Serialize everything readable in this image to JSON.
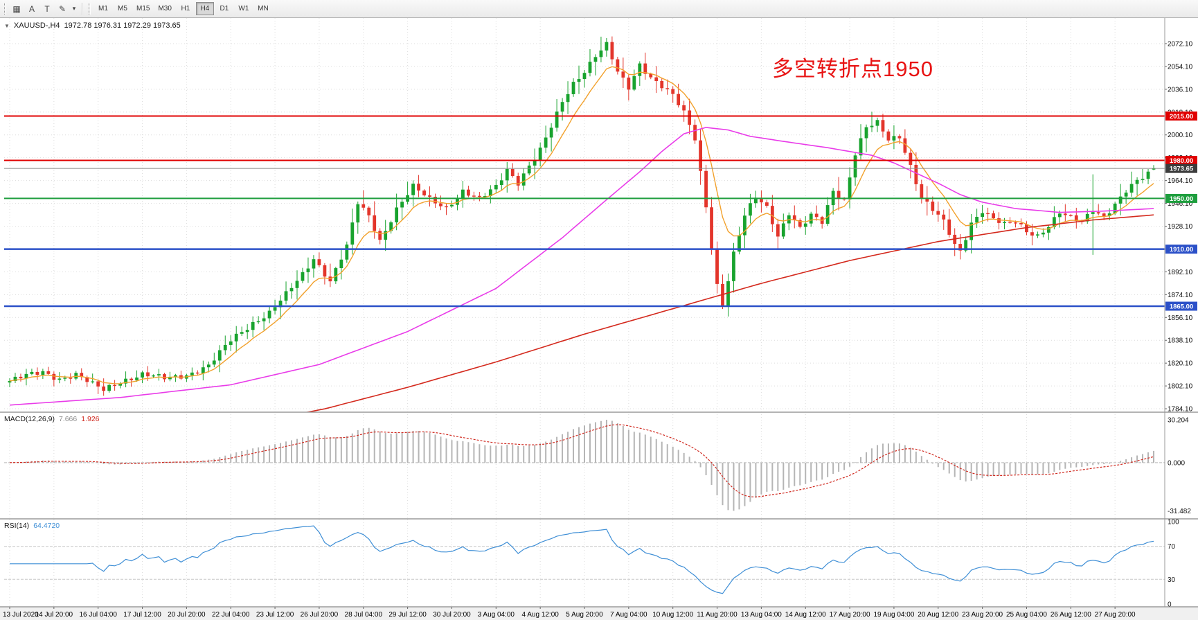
{
  "toolbar": {
    "icons": [
      "▦",
      "A",
      "T",
      "✎",
      "▾"
    ],
    "timeframes": [
      "M1",
      "M5",
      "M15",
      "M30",
      "H1",
      "H4",
      "D1",
      "W1",
      "MN"
    ],
    "active_timeframe": "H4"
  },
  "chart_header": {
    "collapse_icon": "▼",
    "symbol_tf": "XAUUSD-,H4",
    "ohlc": "1972.78 1976.31 1972.29 1973.65"
  },
  "chart_data": {
    "type": "candlestick",
    "symbol": "XAUUSD-",
    "timeframe": "H4",
    "bars": 208,
    "last_bar": {
      "o": 1972.78,
      "h": 1976.31,
      "l": 1972.29,
      "c": 1973.65
    },
    "current": {
      "price": 1973.65,
      "label": "1973.65",
      "color": "#3c3c3c"
    },
    "levels": [
      {
        "price": 2015.0,
        "label": "2015.00",
        "color": "#e00000",
        "width": 2
      },
      {
        "price": 1980.0,
        "label": "1980.00",
        "color": "#e00000",
        "width": 2
      },
      {
        "price": 1950.0,
        "label": "1950.00",
        "color": "#1e9e3e",
        "width": 2
      },
      {
        "price": 1910.0,
        "label": "1910.00",
        "color": "#2b50c8",
        "width": 2.5
      },
      {
        "price": 1865.0,
        "label": "1865.00",
        "color": "#2b50c8",
        "width": 2.5
      }
    ],
    "colors": {
      "up": "#18a32e",
      "down": "#e3352b",
      "ma_fast": "#f2a12c",
      "ma_medium": "#e93ce9",
      "ma_slow": "#d42a1e"
    },
    "price_path_anchors": [
      [
        0,
        1806
      ],
      [
        3,
        1810
      ],
      [
        6,
        1813
      ],
      [
        9,
        1808
      ],
      [
        12,
        1811
      ],
      [
        15,
        1803
      ],
      [
        17,
        1799
      ],
      [
        20,
        1806
      ],
      [
        24,
        1811
      ],
      [
        28,
        1808
      ],
      [
        32,
        1811
      ],
      [
        36,
        1818
      ],
      [
        40,
        1838
      ],
      [
        44,
        1852
      ],
      [
        47,
        1860
      ],
      [
        50,
        1874
      ],
      [
        53,
        1890
      ],
      [
        55,
        1903
      ],
      [
        58,
        1885
      ],
      [
        61,
        1912
      ],
      [
        63,
        1946
      ],
      [
        65,
        1936
      ],
      [
        67,
        1917
      ],
      [
        70,
        1942
      ],
      [
        73,
        1959
      ],
      [
        76,
        1949
      ],
      [
        79,
        1943
      ],
      [
        82,
        1956
      ],
      [
        85,
        1949
      ],
      [
        88,
        1959
      ],
      [
        90,
        1973
      ],
      [
        92,
        1963
      ],
      [
        94,
        1976
      ],
      [
        96,
        1988
      ],
      [
        98,
        2006
      ],
      [
        100,
        2026
      ],
      [
        102,
        2041
      ],
      [
        104,
        2051
      ],
      [
        106,
        2063
      ],
      [
        108,
        2071
      ],
      [
        110,
        2049
      ],
      [
        112,
        2037
      ],
      [
        114,
        2056
      ],
      [
        116,
        2046
      ],
      [
        118,
        2039
      ],
      [
        120,
        2031
      ],
      [
        122,
        2017
      ],
      [
        124,
        1997
      ],
      [
        126,
        1944
      ],
      [
        128,
        1882
      ],
      [
        129,
        1866
      ],
      [
        131,
        1906
      ],
      [
        133,
        1936
      ],
      [
        135,
        1951
      ],
      [
        137,
        1943
      ],
      [
        139,
        1921
      ],
      [
        141,
        1939
      ],
      [
        143,
        1926
      ],
      [
        145,
        1936
      ],
      [
        147,
        1931
      ],
      [
        149,
        1956
      ],
      [
        151,
        1949
      ],
      [
        153,
        1986
      ],
      [
        155,
        2006
      ],
      [
        157,
        2009
      ],
      [
        159,
        1996
      ],
      [
        161,
        1999
      ],
      [
        163,
        1976
      ],
      [
        165,
        1951
      ],
      [
        167,
        1941
      ],
      [
        169,
        1931
      ],
      [
        171,
        1913
      ],
      [
        172,
        1908
      ],
      [
        174,
        1931
      ],
      [
        176,
        1941
      ],
      [
        178,
        1934
      ],
      [
        180,
        1929
      ],
      [
        182,
        1931
      ],
      [
        184,
        1924
      ],
      [
        186,
        1921
      ],
      [
        188,
        1929
      ],
      [
        190,
        1939
      ],
      [
        192,
        1934
      ],
      [
        194,
        1931
      ],
      [
        196,
        1941
      ],
      [
        198,
        1936
      ],
      [
        200,
        1946
      ],
      [
        202,
        1956
      ],
      [
        204,
        1963
      ],
      [
        206,
        1969
      ],
      [
        207,
        1972.8
      ]
    ],
    "wick_overrides": [
      {
        "i": 108,
        "high": 2076.5
      },
      {
        "i": 128,
        "low": 1875.0
      },
      {
        "i": 129,
        "low": 1862.8
      },
      {
        "i": 196,
        "low": 1905.5,
        "high": 1969.0
      }
    ],
    "ma_medium_anchors": [
      [
        0,
        1787
      ],
      [
        20,
        1793
      ],
      [
        40,
        1803
      ],
      [
        56,
        1819
      ],
      [
        72,
        1845
      ],
      [
        88,
        1879
      ],
      [
        100,
        1919
      ],
      [
        108,
        1949
      ],
      [
        114,
        1971
      ],
      [
        118,
        1987
      ],
      [
        122,
        2001
      ],
      [
        126,
        2006
      ],
      [
        130,
        2004
      ],
      [
        134,
        1999
      ],
      [
        140,
        1995
      ],
      [
        148,
        1990
      ],
      [
        156,
        1984
      ],
      [
        160,
        1978
      ],
      [
        164,
        1970
      ],
      [
        168,
        1962
      ],
      [
        172,
        1953
      ],
      [
        176,
        1947
      ],
      [
        182,
        1942
      ],
      [
        190,
        1939
      ],
      [
        198,
        1940
      ],
      [
        207,
        1942
      ]
    ],
    "ma_slow_anchors": [
      [
        40,
        1770
      ],
      [
        57,
        1784
      ],
      [
        72,
        1801
      ],
      [
        88,
        1821
      ],
      [
        104,
        1843
      ],
      [
        120,
        1863
      ],
      [
        136,
        1883
      ],
      [
        152,
        1901
      ],
      [
        168,
        1916
      ],
      [
        184,
        1927
      ],
      [
        196,
        1933
      ],
      [
        207,
        1937
      ]
    ],
    "y_axis_labels": [
      "2072.10",
      "2054.10",
      "2036.10",
      "2018.10",
      "2000.10",
      "1982.10",
      "1964.10",
      "1946.10",
      "1928.10",
      "1910.10",
      "1892.10",
      "1874.10",
      "1856.10",
      "1838.10",
      "1820.10",
      "1802.10",
      "1784.10"
    ],
    "x_axis_labels": [
      "13 Jul 2020",
      "14 Jul 20:00",
      "16 Jul 04:00",
      "17 Jul 12:00",
      "20 Jul 20:00",
      "22 Jul 04:00",
      "23 Jul 12:00",
      "26 Jul 20:00",
      "28 Jul 04:00",
      "29 Jul 12:00",
      "30 Jul 20:00",
      "3 Aug 04:00",
      "4 Aug 12:00",
      "5 Aug 20:00",
      "7 Aug 04:00",
      "10 Aug 12:00",
      "11 Aug 20:00",
      "13 Aug 04:00",
      "14 Aug 12:00",
      "17 Aug 20:00",
      "19 Aug 04:00",
      "20 Aug 12:00",
      "23 Aug 20:00",
      "25 Aug 04:00",
      "26 Aug 12:00",
      "27 Aug 20:00"
    ],
    "indicators": {
      "macd": {
        "label": "MACD(12,26,9)",
        "value": "7.666",
        "signal_value": "1.926",
        "axis_labels": [
          "30.204",
          "0.000",
          "-31.482"
        ]
      },
      "rsi": {
        "label": "RSI(14)",
        "value": "64.4720",
        "levels": [
          70,
          30
        ],
        "axis_labels": [
          "100",
          "70",
          "30",
          "0"
        ]
      }
    },
    "annotation": {
      "text": "多空转折点1950",
      "color": "#e81414"
    }
  }
}
